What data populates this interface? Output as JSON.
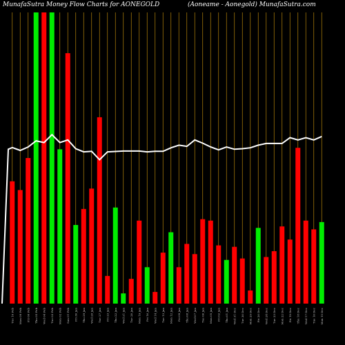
{
  "chart_data": {
    "type": "bar",
    "title_left": "MunafaSutra  Money Flow  Charts for AONEGOLD",
    "title_right": "(Aoneame -   Aonegold) MunafaSutra.com",
    "ylim": [
      0,
      100
    ],
    "colors": {
      "background": "#000000",
      "up": "#00ee00",
      "down": "#ff0000",
      "line": "#ffffff",
      "grid": "#b8860b"
    },
    "bars": [
      {
        "date": "Tue 10 Feb",
        "value": 42.0,
        "dir": "down"
      },
      {
        "date": "Mon 09 Feb",
        "value": 39.0,
        "dir": "down"
      },
      {
        "date": "Fri 06 Feb",
        "value": 50.0,
        "dir": "down"
      },
      {
        "date": "Thu 05 Feb",
        "value": 100.0,
        "dir": "up"
      },
      {
        "date": "Wed 04 Feb",
        "value": 100.0,
        "dir": "down"
      },
      {
        "date": "Tue 03 Feb",
        "value": 100.0,
        "dir": "up"
      },
      {
        "date": "Mon 02 Feb",
        "value": 53.0,
        "dir": "up"
      },
      {
        "date": "Sun 01 Feb",
        "value": 86.0,
        "dir": "down"
      },
      {
        "date": "Fri 30 Jan",
        "value": 27.0,
        "dir": "up"
      },
      {
        "date": "Thu 29 Jan",
        "value": 32.5,
        "dir": "down"
      },
      {
        "date": "Wed 28 Jan",
        "value": 39.5,
        "dir": "down"
      },
      {
        "date": "Tue 27 Jan",
        "value": 64.0,
        "dir": "down"
      },
      {
        "date": "Fri 23 Jan",
        "value": 9.5,
        "dir": "down"
      },
      {
        "date": "Thu 22 Jan",
        "value": 33.0,
        "dir": "up"
      },
      {
        "date": "Wed 21 Jan",
        "value": 3.5,
        "dir": "up"
      },
      {
        "date": "Tue 20 Jan",
        "value": 8.5,
        "dir": "down"
      },
      {
        "date": "Mon 19 Jan",
        "value": 28.5,
        "dir": "down"
      },
      {
        "date": "Fri 16 Jan",
        "value": 12.5,
        "dir": "up"
      },
      {
        "date": "Wed 14 Jan",
        "value": 4.0,
        "dir": "down"
      },
      {
        "date": "Tue 13 Jan",
        "value": 17.5,
        "dir": "down"
      },
      {
        "date": "Mon 12 Jan",
        "value": 24.5,
        "dir": "up"
      },
      {
        "date": "Fri 09 Jan",
        "value": 12.5,
        "dir": "down"
      },
      {
        "date": "Thu 08 Jan",
        "value": 20.5,
        "dir": "down"
      },
      {
        "date": "Wed 07 Jan",
        "value": 17.0,
        "dir": "down"
      },
      {
        "date": "Tue 06 Jan",
        "value": 29.0,
        "dir": "down"
      },
      {
        "date": "Mon 05 Jan",
        "value": 28.5,
        "dir": "down"
      },
      {
        "date": "Fri 02 Jan",
        "value": 20.0,
        "dir": "down"
      },
      {
        "date": "Thu 01 Jan",
        "value": 15.0,
        "dir": "up"
      },
      {
        "date": "Wed 31 Dec",
        "value": 19.5,
        "dir": "down"
      },
      {
        "date": "Tue 30 Dec",
        "value": 15.5,
        "dir": "down"
      },
      {
        "date": "Mon 29 Dec",
        "value": 4.5,
        "dir": "down"
      },
      {
        "date": "Fri 26 Dec",
        "value": 26.0,
        "dir": "up"
      },
      {
        "date": "Wed 24 Dec",
        "value": 16.0,
        "dir": "down"
      },
      {
        "date": "Tue 23 Dec",
        "value": 18.0,
        "dir": "down"
      },
      {
        "date": "Mon 22 Dec",
        "value": 26.5,
        "dir": "down"
      },
      {
        "date": "Fri 19 Dec",
        "value": 22.0,
        "dir": "down"
      },
      {
        "date": "Thu 18 Dec",
        "value": 53.5,
        "dir": "down"
      },
      {
        "date": "Wed 17 Dec",
        "value": 28.5,
        "dir": "down"
      },
      {
        "date": "Tue 16 Dec",
        "value": 25.5,
        "dir": "down"
      },
      {
        "date": "Mon 15 Dec",
        "value": 28.0,
        "dir": "up"
      }
    ],
    "line": [
      {
        "x": 0.0,
        "v": 0.0
      },
      {
        "x": 0.5,
        "v": 53.0
      },
      {
        "x": 1.0,
        "v": 53.6
      },
      {
        "x": 2.0,
        "v": 52.6
      },
      {
        "x": 3.0,
        "v": 53.8
      },
      {
        "x": 4.0,
        "v": 55.9
      },
      {
        "x": 5.0,
        "v": 55.3
      },
      {
        "x": 6.0,
        "v": 58.0
      },
      {
        "x": 7.0,
        "v": 55.3
      },
      {
        "x": 8.0,
        "v": 56.2
      },
      {
        "x": 9.0,
        "v": 53.2
      },
      {
        "x": 10.0,
        "v": 52.1
      },
      {
        "x": 11.0,
        "v": 52.3
      },
      {
        "x": 12.0,
        "v": 49.4
      },
      {
        "x": 13.0,
        "v": 52.1
      },
      {
        "x": 15.0,
        "v": 52.4
      },
      {
        "x": 17.0,
        "v": 52.4
      },
      {
        "x": 18.0,
        "v": 52.1
      },
      {
        "x": 19.0,
        "v": 52.3
      },
      {
        "x": 20.0,
        "v": 52.3
      },
      {
        "x": 21.0,
        "v": 53.5
      },
      {
        "x": 22.0,
        "v": 54.4
      },
      {
        "x": 23.0,
        "v": 54.0
      },
      {
        "x": 24.0,
        "v": 56.2
      },
      {
        "x": 25.0,
        "v": 55.1
      },
      {
        "x": 26.0,
        "v": 53.8
      },
      {
        "x": 27.0,
        "v": 52.8
      },
      {
        "x": 28.0,
        "v": 53.8
      },
      {
        "x": 29.0,
        "v": 53.0
      },
      {
        "x": 30.0,
        "v": 53.2
      },
      {
        "x": 31.0,
        "v": 53.5
      },
      {
        "x": 32.0,
        "v": 54.4
      },
      {
        "x": 33.0,
        "v": 55.0
      },
      {
        "x": 34.0,
        "v": 55.0
      },
      {
        "x": 35.0,
        "v": 55.0
      },
      {
        "x": 36.0,
        "v": 57.0
      },
      {
        "x": 37.0,
        "v": 56.2
      },
      {
        "x": 38.0,
        "v": 57.0
      },
      {
        "x": 39.0,
        "v": 56.2
      },
      {
        "x": 40.0,
        "v": 57.4
      }
    ]
  }
}
